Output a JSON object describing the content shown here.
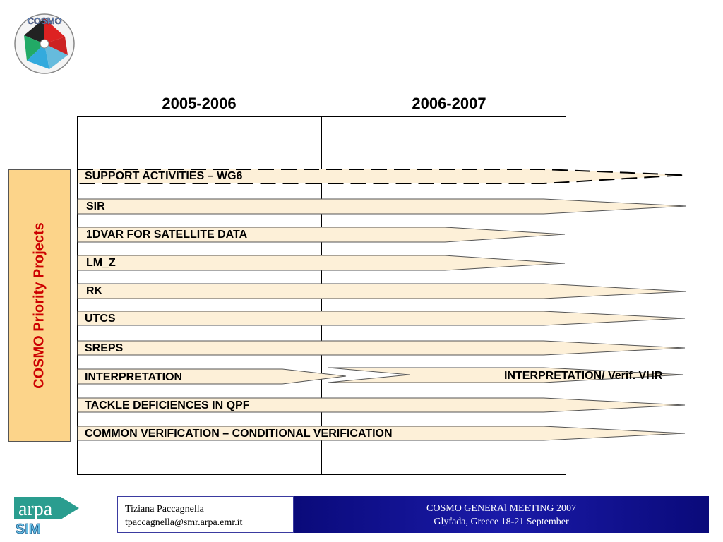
{
  "columns": [
    "2005-2006",
    "2006-2007"
  ],
  "side_label": "COSMO Priority Projects",
  "projects": [
    {
      "name": "SUPPORT ACTIVITIES – WG6",
      "end": "beyond-2007",
      "style": "dashed"
    },
    {
      "name": "SIR",
      "end": "beyond-2007",
      "style": "solid"
    },
    {
      "name": "1DVAR FOR SATELLITE DATA",
      "end": "2007",
      "style": "solid"
    },
    {
      "name": "LM_Z",
      "end": "2007",
      "style": "solid"
    },
    {
      "name": "RK",
      "end": "beyond-2007",
      "style": "solid"
    },
    {
      "name": "UTCS",
      "end": "beyond-2007",
      "style": "solid"
    },
    {
      "name": "SREPS",
      "end": "beyond-2007",
      "style": "solid"
    },
    {
      "name": "INTERPRETATION",
      "end": "2006",
      "style": "solid",
      "continuation": "INTERPRETATION/ Verif. VHR"
    },
    {
      "name": "TACKLE DEFICIENCES IN QPF",
      "end": "beyond-2007",
      "style": "solid"
    },
    {
      "name": "COMMON VERIFICATION – CONDITIONAL VERIFICATION",
      "end": "beyond-2007",
      "style": "solid"
    }
  ],
  "footer": {
    "author": "Tiziana Paccagnella",
    "email": "tpaccagnella@smr.arpa.emr.it",
    "meeting": "COSMO GENERAl MEETING 2007",
    "location": "Glyfada, Greece 18-21 September"
  },
  "logos": {
    "cosmo_text": "COSMO",
    "arpa_text": "arpa",
    "sim_text": "SIM"
  },
  "colors": {
    "bar_fill": "#fdf0d8",
    "side_fill": "#fcd48a",
    "side_text": "#cc0000",
    "footer_blue": "#1a1aa8"
  }
}
